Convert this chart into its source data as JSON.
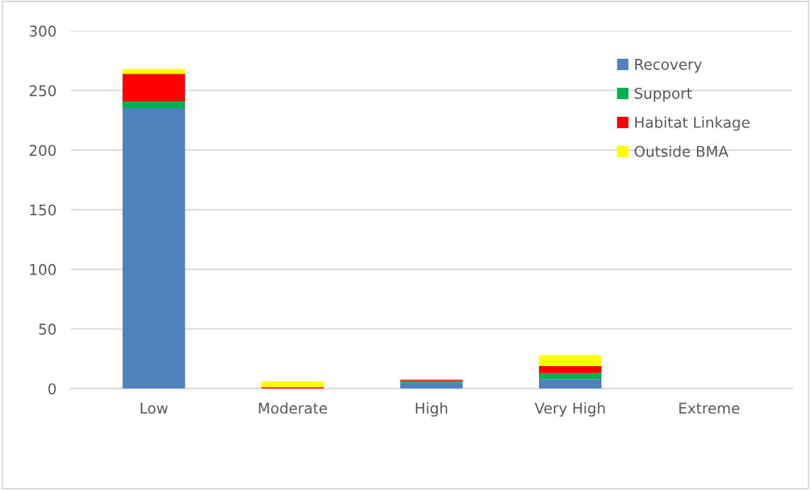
{
  "chart_data": {
    "type": "bar",
    "stacked": true,
    "categories": [
      "Low",
      "Moderate",
      "High",
      "Very High",
      "Extreme"
    ],
    "series": [
      {
        "name": "Recovery",
        "color": "#4f81bd",
        "values": [
          235,
          0,
          5,
          8,
          0
        ]
      },
      {
        "name": "Support",
        "color": "#00b050",
        "values": [
          6,
          0,
          1.5,
          5,
          0
        ]
      },
      {
        "name": "Habitat Linkage",
        "color": "#ff0000",
        "values": [
          23,
          1,
          1,
          6,
          0
        ]
      },
      {
        "name": "Outside BMA",
        "color": "#ffff00",
        "values": [
          4,
          5,
          0,
          9,
          0
        ]
      }
    ],
    "ylim": [
      0,
      300
    ],
    "yticks": [
      0,
      50,
      100,
      150,
      200,
      250,
      300
    ],
    "grid": "y",
    "legend": "top right"
  }
}
